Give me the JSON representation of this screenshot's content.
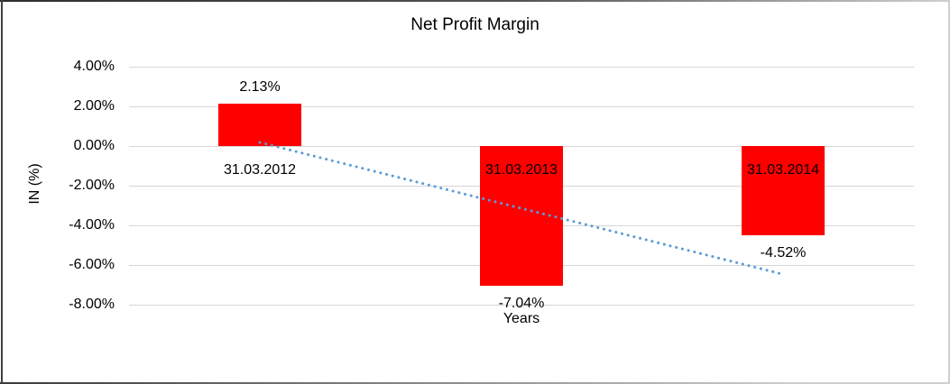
{
  "chart_data": {
    "type": "bar",
    "title": "Net Profit Margin",
    "xlabel": "Years",
    "ylabel": "IN (%)",
    "categories": [
      "31.03.2012",
      "31.03.2013",
      "31.03.2014"
    ],
    "values": [
      2.13,
      -7.04,
      -4.52
    ],
    "value_labels": [
      "2.13%",
      "-7.04%",
      "-4.52%"
    ],
    "ylim": [
      -8,
      4
    ],
    "yticks": [
      {
        "label": "4.00%",
        "value": 4
      },
      {
        "label": "2.00%",
        "value": 2
      },
      {
        "label": "0.00%",
        "value": 0
      },
      {
        "label": "-2.00%",
        "value": -2
      },
      {
        "label": "-4.00%",
        "value": -4
      },
      {
        "label": "-6.00%",
        "value": -6
      },
      {
        "label": "-8.00%",
        "value": -8
      }
    ],
    "grid": "horizontal",
    "legend": "none",
    "trendline": {
      "type": "linear",
      "style": "dotted"
    },
    "colors": {
      "bar": "#FF0000",
      "trendline": "#5B9BD5",
      "gridline": "#D6D6D6",
      "text": "#000000",
      "background": "#FFFFFF"
    }
  }
}
